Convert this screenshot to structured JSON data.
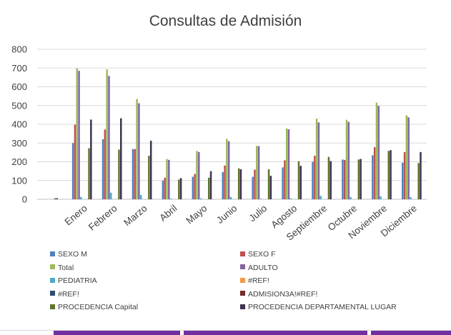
{
  "chart_data": {
    "type": "bar",
    "title": "Consultas de Admisión",
    "xlabel": "",
    "ylabel": "",
    "ylim": [
      0,
      800
    ],
    "yticks": [
      0,
      100,
      200,
      300,
      400,
      500,
      600,
      700,
      800
    ],
    "grid": true,
    "legend_position": "bottom",
    "categories": [
      "",
      "Enero",
      "Febrero",
      "Marzo",
      "Abril",
      "Mayo",
      "Junio",
      "Julio",
      "Agosto",
      "Septiembre",
      "Octubre",
      "Noviembre",
      "Diciembre"
    ],
    "series": [
      {
        "name": "SEXO M",
        "color": "#4f81bd",
        "values": [
          0,
          300,
          320,
          268,
          100,
          120,
          145,
          120,
          170,
          200,
          212,
          235,
          195
        ]
      },
      {
        "name": "SEXO F",
        "color": "#c0504d",
        "values": [
          0,
          398,
          372,
          268,
          115,
          135,
          180,
          158,
          208,
          232,
          210,
          278,
          252
        ]
      },
      {
        "name": "Total",
        "color": "#9bbb59",
        "values": [
          0,
          698,
          693,
          535,
          215,
          258,
          322,
          285,
          378,
          430,
          424,
          515,
          448
        ]
      },
      {
        "name": "ADULTO",
        "color": "#8064a2",
        "values": [
          0,
          685,
          658,
          512,
          210,
          252,
          310,
          283,
          373,
          410,
          413,
          498,
          437
        ]
      },
      {
        "name": "PEDIATRIA",
        "color": "#4bacc6",
        "values": [
          0,
          12,
          35,
          23,
          4,
          5,
          12,
          3,
          5,
          18,
          12,
          16,
          11
        ]
      },
      {
        "name": "#REF!",
        "color": "#f79646",
        "values": [
          0,
          0,
          0,
          0,
          0,
          0,
          0,
          0,
          0,
          0,
          0,
          0,
          0
        ]
      },
      {
        "name": "#REF!",
        "color": "#2c4d75",
        "values": [
          5,
          0,
          0,
          0,
          0,
          0,
          0,
          0,
          0,
          0,
          0,
          0,
          0
        ]
      },
      {
        "name": "ADMISION3A!#REF!",
        "color": "#772c2a",
        "values": [
          6,
          0,
          0,
          0,
          0,
          0,
          0,
          0,
          0,
          0,
          0,
          0,
          0
        ]
      },
      {
        "name": "PROCEDENCIA Capital",
        "color": "#5f7530",
        "values": [
          0,
          272,
          265,
          232,
          105,
          115,
          165,
          160,
          203,
          226,
          212,
          258,
          193
        ]
      },
      {
        "name": "PROCEDENCIA DEPARTAMENTAL  LUGAR",
        "color": "#403151",
        "values": [
          0,
          425,
          432,
          312,
          113,
          150,
          160,
          125,
          178,
          204,
          215,
          262,
          252
        ]
      }
    ]
  }
}
